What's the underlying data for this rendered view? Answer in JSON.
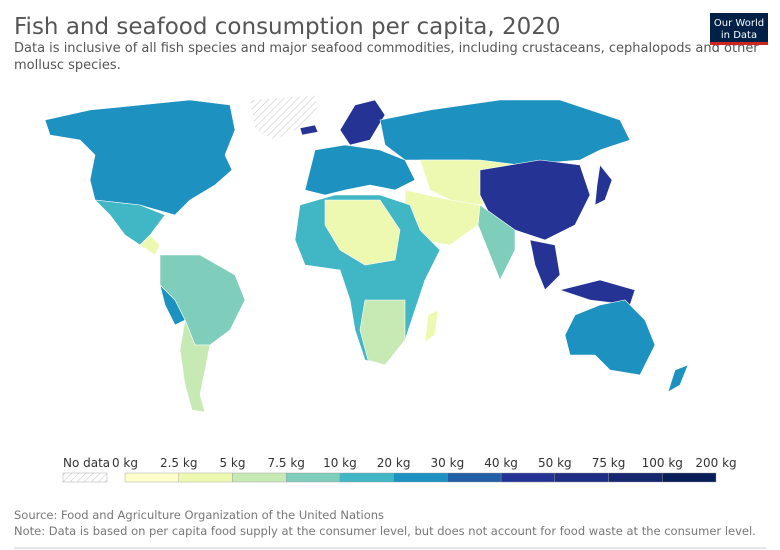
{
  "title": "Fish and seafood consumption per capita, 2020",
  "subtitle": [
    "Data is inclusive of all fish species and major seafood commodities, including crustaceans, cephalopods and other",
    "mollusc species."
  ],
  "logo": [
    "Our World",
    "in Data"
  ],
  "legend": {
    "no_data": "No data",
    "labels": [
      "0 kg",
      "2.5 kg",
      "5 kg",
      "7.5 kg",
      "10 kg",
      "20 kg",
      "30 kg",
      "40 kg",
      "50 kg",
      "75 kg",
      "100 kg",
      "200 kg"
    ],
    "colors": [
      "#ffffcc",
      "#edf8b1",
      "#c7e9b4",
      "#7fcdbb",
      "#41b6c4",
      "#1d91c0",
      "#225ea8",
      "#253494",
      "#1f2d86",
      "#16266f",
      "#081d58"
    ]
  },
  "source": "Source: Food and Agriculture Organization of the United Nations",
  "note": "Note: Data is based on per capita food supply at the consumer level, but does not account for food waste at the consumer level."
}
